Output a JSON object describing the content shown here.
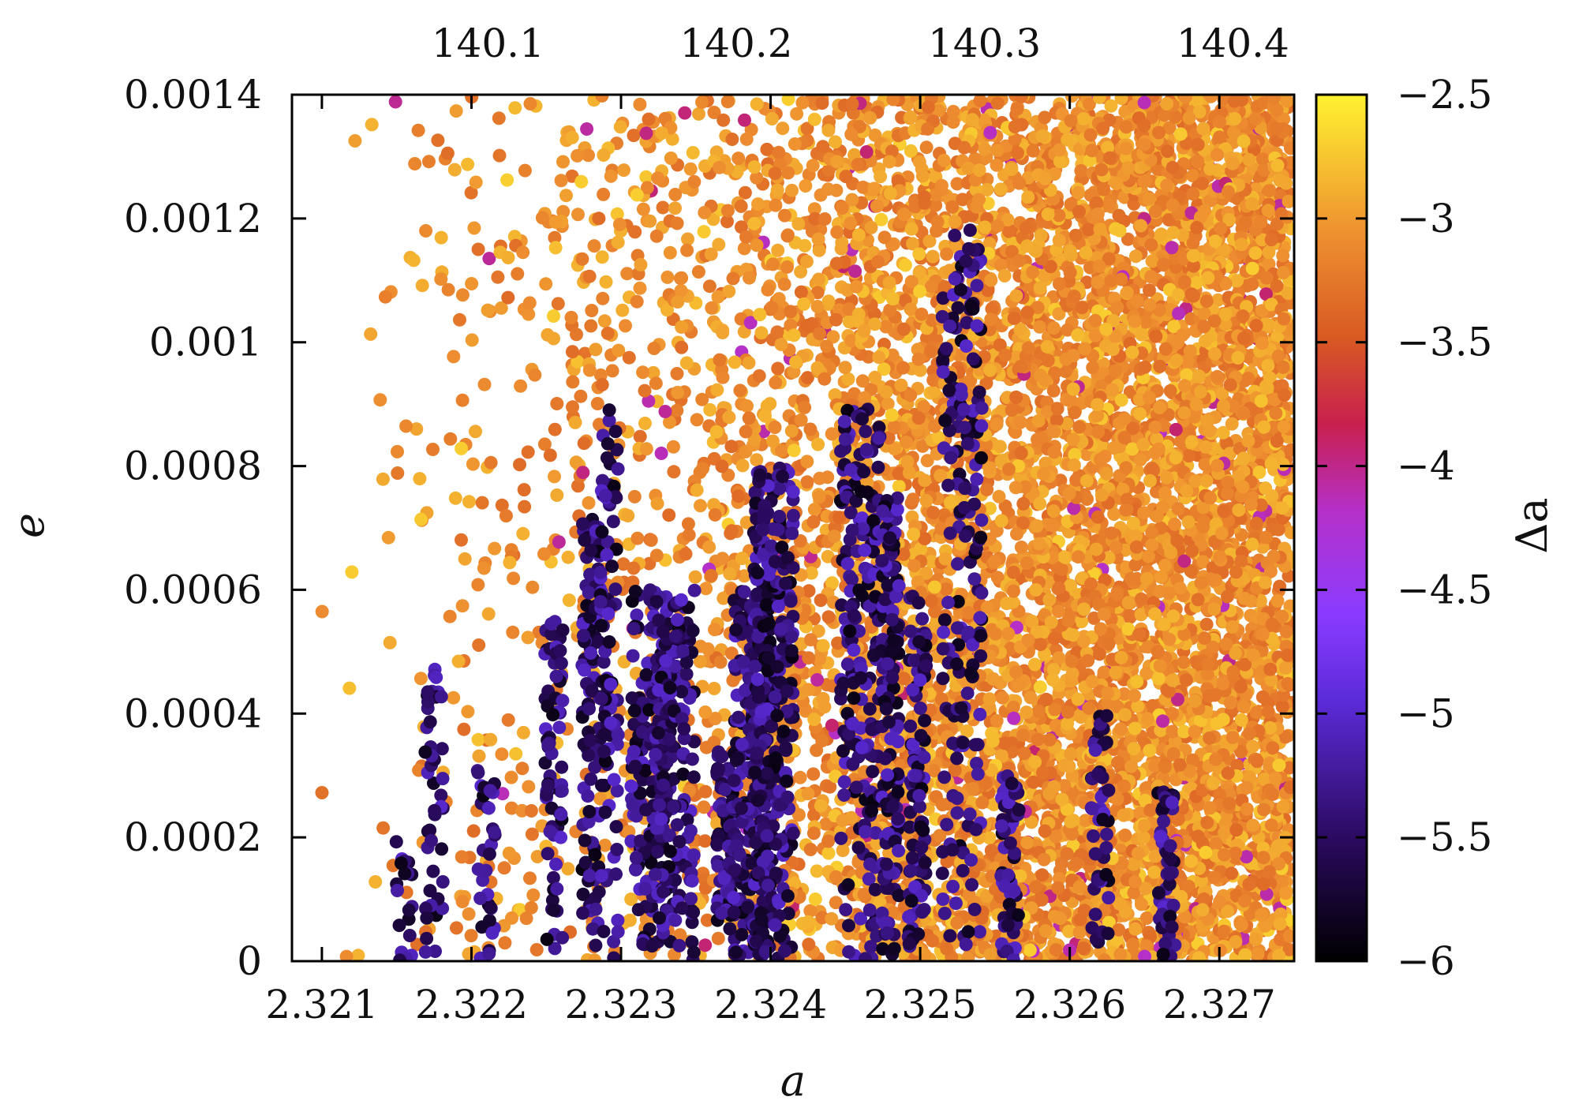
{
  "chart_data": {
    "type": "scatter",
    "title": "",
    "xlabel": "a",
    "ylabel": "e",
    "xlim": [
      2.3208,
      2.3275
    ],
    "ylim": [
      0,
      0.0014
    ],
    "x_ticks": [
      "2.321",
      "2.322",
      "2.323",
      "2.324",
      "2.325",
      "2.326",
      "2.327"
    ],
    "x_tick_values": [
      2.321,
      2.322,
      2.323,
      2.324,
      2.325,
      2.326,
      2.327
    ],
    "y_ticks": [
      "0",
      "0.0002",
      "0.0004",
      "0.0006",
      "0.0008",
      "0.001",
      "0.0012",
      "0.0014"
    ],
    "y_tick_values": [
      0,
      0.0002,
      0.0004,
      0.0006,
      0.0008,
      0.001,
      0.0012,
      0.0014
    ],
    "x2_ticks": [
      "140.1",
      "140.2",
      "140.3",
      "140.4"
    ],
    "x2_tick_positions_a": [
      2.32211,
      2.32377,
      2.32543,
      2.32709
    ],
    "colorbar": {
      "label": "Δa",
      "range": [
        -6,
        -2.5
      ],
      "ticks": [
        "−2.5",
        "−3",
        "−3.5",
        "−4",
        "−4.5",
        "−5",
        "−5.5",
        "−6"
      ],
      "tick_values": [
        -2.5,
        -3,
        -3.5,
        -4,
        -4.5,
        -5,
        -5.5,
        -6
      ],
      "palette_stops": [
        {
          "v": 0.0,
          "color": "#000000"
        },
        {
          "v": 0.14,
          "color": "#2a0a5e"
        },
        {
          "v": 0.3,
          "color": "#5b2bd8"
        },
        {
          "v": 0.4,
          "color": "#8a3bff"
        },
        {
          "v": 0.52,
          "color": "#b530c8"
        },
        {
          "v": 0.62,
          "color": "#c8204e"
        },
        {
          "v": 0.72,
          "color": "#d85a23"
        },
        {
          "v": 0.84,
          "color": "#ee9030"
        },
        {
          "v": 1.0,
          "color": "#fff230"
        }
      ]
    },
    "columns_purple": [
      {
        "a": 2.32155,
        "e_max": 0.00021,
        "density": 6
      },
      {
        "a": 2.32175,
        "e_max": 0.0005,
        "density": 14
      },
      {
        "a": 2.3221,
        "e_max": 0.00032,
        "density": 10
      },
      {
        "a": 2.32255,
        "e_max": 0.00055,
        "density": 22
      },
      {
        "a": 2.3228,
        "e_max": 0.00072,
        "density": 30
      },
      {
        "a": 2.32292,
        "e_max": 0.0009,
        "density": 30
      },
      {
        "a": 2.3232,
        "e_max": 0.0006,
        "density": 55
      },
      {
        "a": 2.32336,
        "e_max": 0.0006,
        "density": 55
      },
      {
        "a": 2.3237,
        "e_max": 0.00035,
        "density": 25
      },
      {
        "a": 2.32388,
        "e_max": 0.0006,
        "density": 80
      },
      {
        "a": 2.32402,
        "e_max": 0.0008,
        "density": 90
      },
      {
        "a": 2.3246,
        "e_max": 0.0009,
        "density": 60
      },
      {
        "a": 2.3248,
        "e_max": 0.00075,
        "density": 45
      },
      {
        "a": 2.32498,
        "e_max": 0.0006,
        "density": 30
      },
      {
        "a": 2.32528,
        "e_max": 0.0012,
        "density": 55
      },
      {
        "a": 2.3256,
        "e_max": 0.0003,
        "density": 18
      },
      {
        "a": 2.3262,
        "e_max": 0.0004,
        "density": 14
      },
      {
        "a": 2.32665,
        "e_max": 0.00028,
        "density": 16
      }
    ],
    "notes": "Dense scatter of many thousands of points; orange (Δa≈−3) points fill the region increasingly toward large a, purple (Δa≈−5 to −6) points form vertical columns at resonant a values."
  }
}
